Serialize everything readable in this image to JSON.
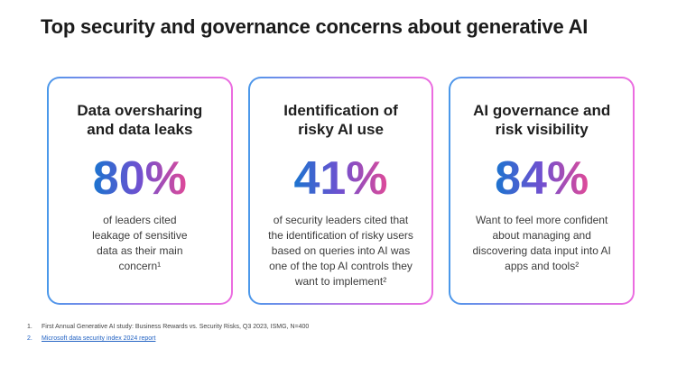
{
  "slide": {
    "title": "Top security and governance concerns about generative AI"
  },
  "cards": [
    {
      "heading": "Data oversharing\nand data leaks",
      "stat": "80%",
      "description": "of leaders cited\nleakage of sensitive\ndata as their main\nconcern¹"
    },
    {
      "heading": "Identification of\nrisky AI use",
      "stat": "41%",
      "description": "of security leaders cited that\nthe identification of risky users\nbased on queries into AI was\none of the top AI controls they\nwant to implement²"
    },
    {
      "heading": "AI governance and\nrisk visibility",
      "stat": "84%",
      "description": "Want to feel more confident\nabout managing and\ndiscovering data input into AI\napps and tools²"
    }
  ],
  "footnotes": [
    {
      "number": "1.",
      "text": "First Annual Generative AI study: Business Rewards vs. Security Risks, Q3 2023, ISMG, N=400"
    },
    {
      "number": "2.",
      "text": "Microsoft data security index 2024 report"
    }
  ],
  "colors": {
    "stat_gradient": [
      "#1b74cf",
      "#7050d0",
      "#e04a98"
    ],
    "card_border_gradient": [
      "#4a98ea",
      "#b678e8",
      "#ec6ce0"
    ],
    "link_blue": "#2464c4",
    "title_text": "#1b1b1b",
    "body_text": "#3c3c3c"
  }
}
